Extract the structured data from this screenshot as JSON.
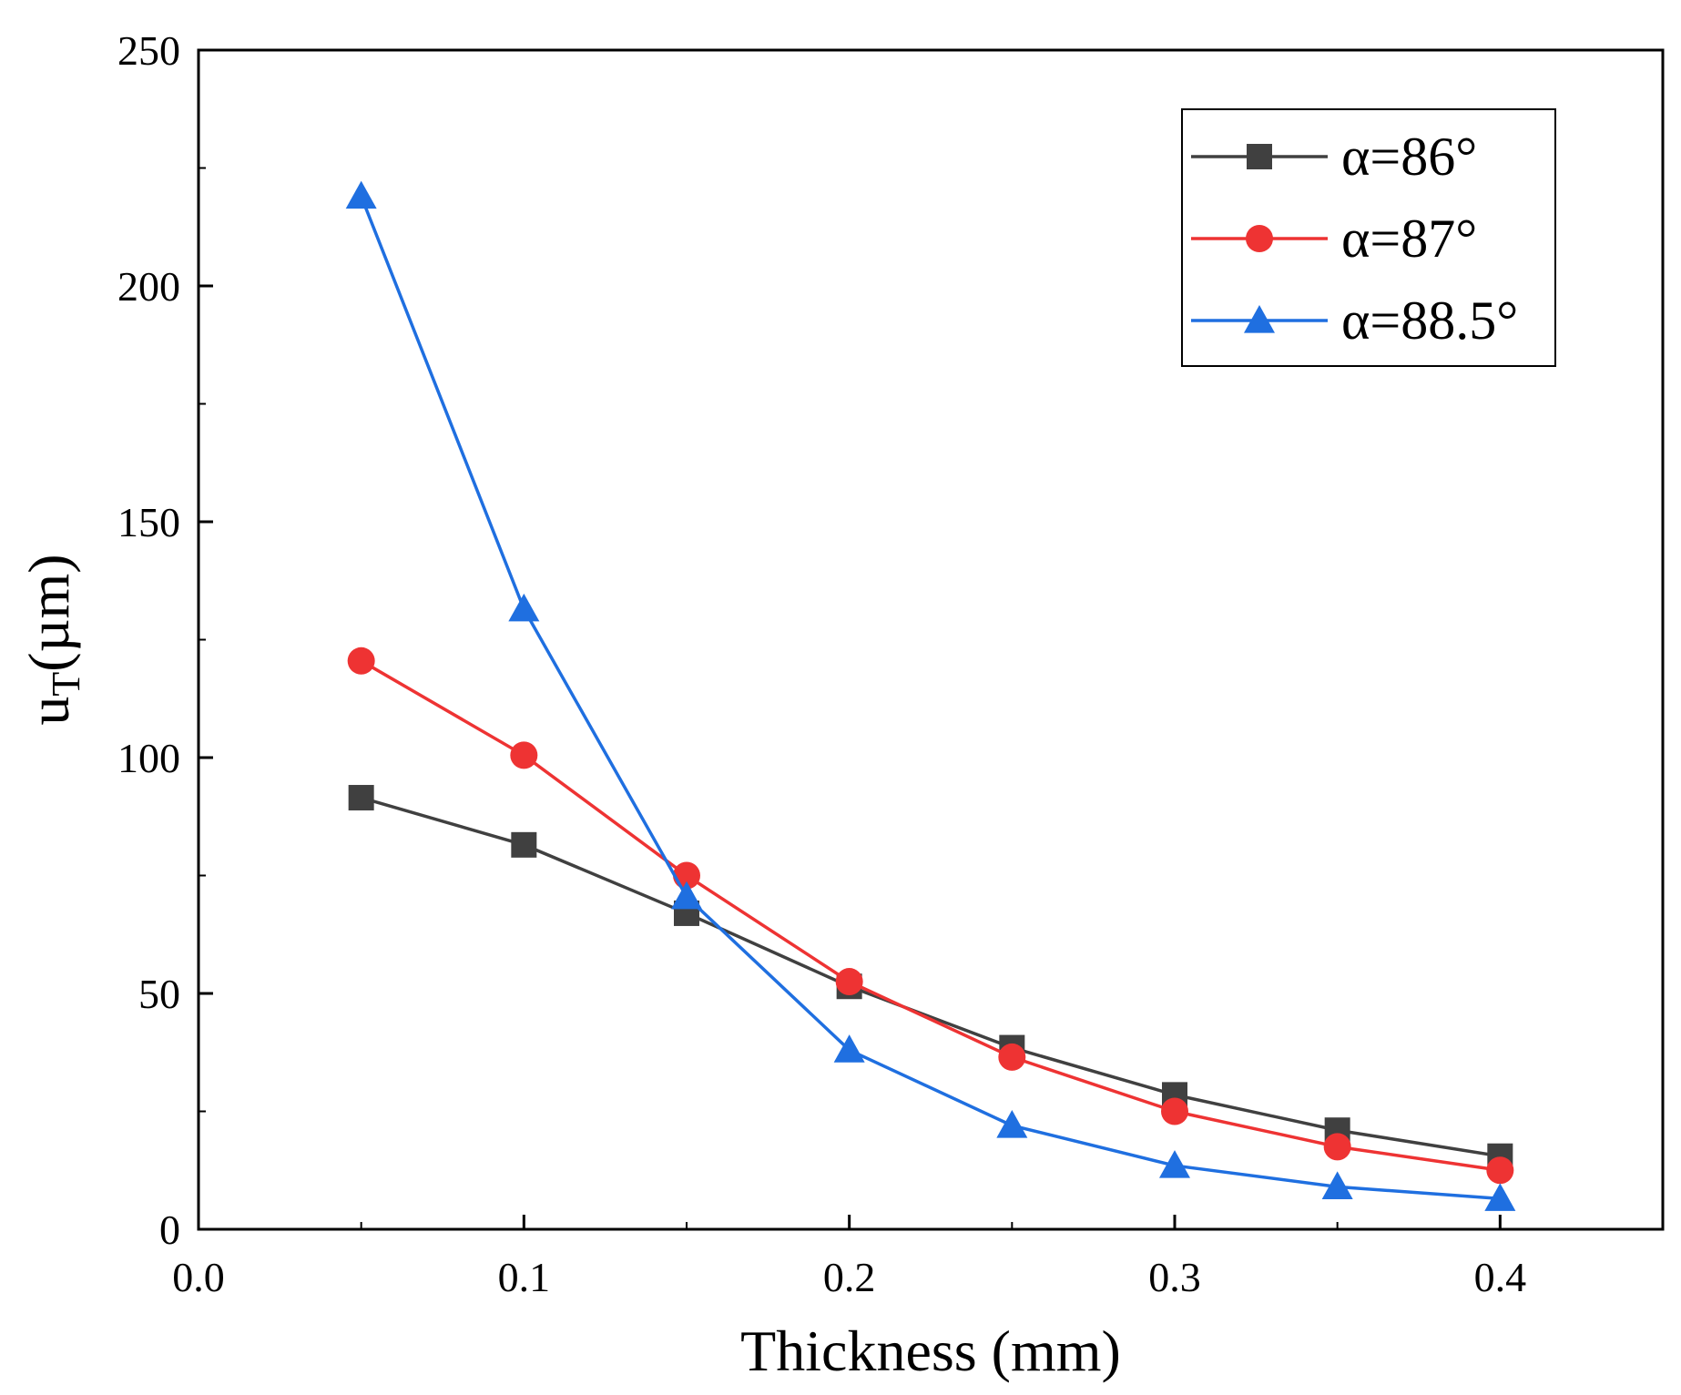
{
  "chart_data": {
    "type": "line",
    "title": "",
    "xlabel": "Thickness (mm)",
    "ylabel_main": "u",
    "ylabel_sub": "T",
    "ylabel_tail": "(µm)",
    "xlim": [
      0.0,
      0.45
    ],
    "ylim": [
      0,
      250
    ],
    "x_ticks": [
      0.0,
      0.1,
      0.2,
      0.3,
      0.4
    ],
    "x_tick_labels": [
      "0.0",
      "0.1",
      "0.2",
      "0.3",
      "0.4"
    ],
    "y_ticks": [
      0,
      50,
      100,
      150,
      200,
      250
    ],
    "y_tick_labels": [
      "0",
      "50",
      "100",
      "150",
      "200",
      "250"
    ],
    "grid": false,
    "legend_position": "top-right",
    "x": [
      0.05,
      0.1,
      0.15,
      0.2,
      0.25,
      0.3,
      0.35,
      0.4
    ],
    "series": [
      {
        "name": "α=86°",
        "marker": "square",
        "color": "#404040",
        "values": [
          91.5,
          81.5,
          67,
          51.5,
          38.5,
          28.5,
          21,
          15.5
        ]
      },
      {
        "name": "α=87°",
        "marker": "circle",
        "color": "#ee3333",
        "values": [
          120.5,
          100.5,
          75,
          52.5,
          36.5,
          25,
          17.5,
          12.5
        ]
      },
      {
        "name": "α=88.5°",
        "marker": "triangle",
        "color": "#1f6fe0",
        "values": [
          219,
          131.5,
          70.5,
          38,
          22,
          13.5,
          9,
          6.5
        ]
      }
    ]
  }
}
